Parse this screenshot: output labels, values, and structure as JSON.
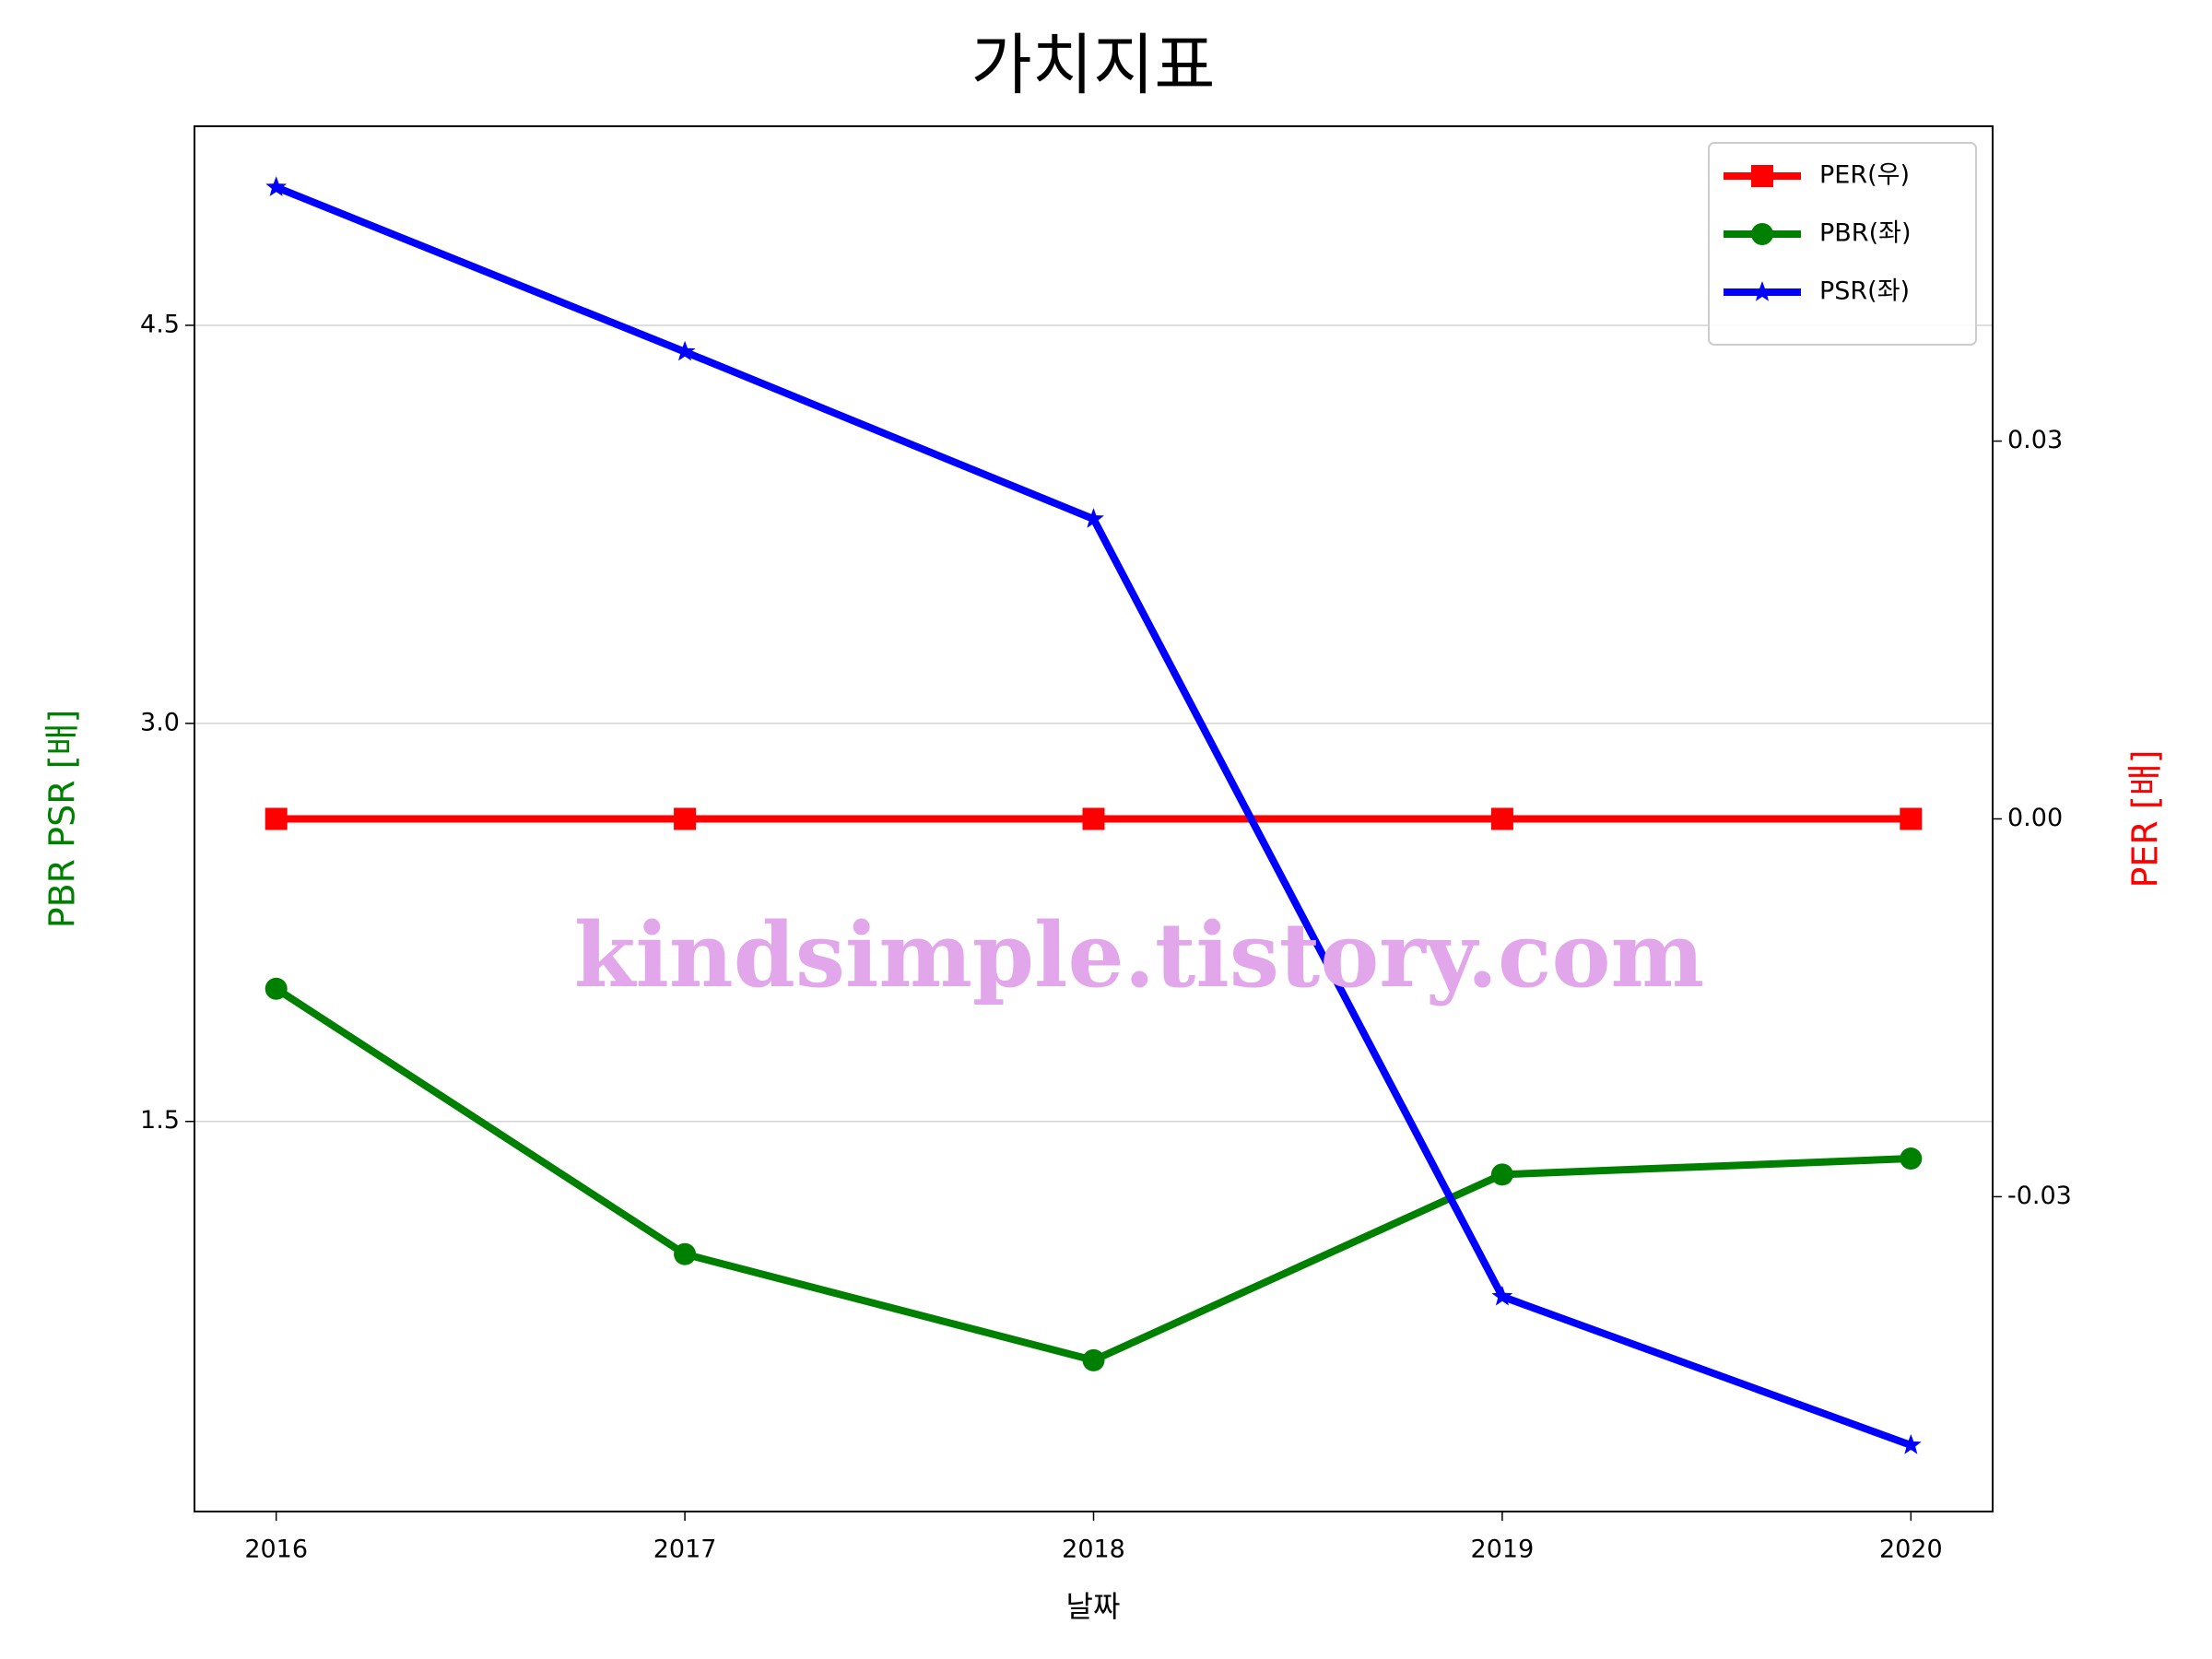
{
  "chart_data": {
    "type": "line",
    "title": "가치지표",
    "xlabel": "날짜",
    "ylabel": "PBR PSR [배]",
    "ylabel_color": "green",
    "y2label": "PER [배]",
    "y2label_color": "red",
    "x": [
      2016,
      2017,
      2018,
      2019,
      2020
    ],
    "xlim": [
      2015.8,
      2020.2
    ],
    "xticks": [
      2016,
      2017,
      2018,
      2019,
      2020
    ],
    "ylim": [
      0.03,
      5.25
    ],
    "yticks": [
      {
        "value": 1.5,
        "label": "1.5"
      },
      {
        "value": 3.0,
        "label": "3.0"
      },
      {
        "value": 4.5,
        "label": "4.5"
      }
    ],
    "y2lim": [
      -0.055,
      0.055
    ],
    "y2ticks": [
      {
        "value": -0.03,
        "label": "-0.03"
      },
      {
        "value": 0,
        "label": "0.00"
      },
      {
        "value": 0.03,
        "label": "0.03"
      }
    ],
    "grid": true,
    "legend": "upper right",
    "annotation": "kindsimple.tistory.com",
    "series": [
      {
        "name": "PER(우)",
        "color": "red",
        "marker": "square",
        "axis": "y2",
        "values": [
          0,
          0,
          0,
          0,
          0
        ]
      },
      {
        "name": "PBR(좌)",
        "color": "green",
        "marker": "circle",
        "values": [
          2.0,
          1.0,
          0.6,
          1.3,
          1.36
        ]
      },
      {
        "name": "PSR(좌)",
        "color": "blue",
        "marker": "star",
        "values": [
          5.02,
          4.4,
          3.77,
          0.84,
          0.28
        ]
      }
    ]
  }
}
